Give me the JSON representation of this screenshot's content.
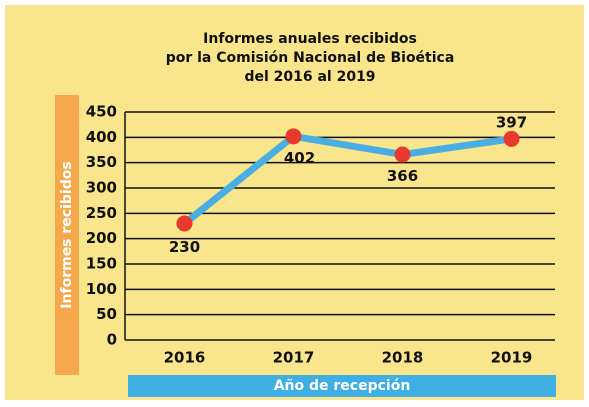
{
  "chart_data": {
    "type": "line",
    "title": "Informes anuales recibidos\npor la Comisión Nacional de Bioética\ndel 2016 al 2019",
    "x_label": "Año de recepción",
    "y_label": "Informes recibidos",
    "categories": [
      "2016",
      "2017",
      "2018",
      "2019"
    ],
    "series": [
      {
        "name": "Informes recibidos",
        "color": "#4aaee3",
        "marker_color": "#e8392f",
        "values": [
          230,
          402,
          366,
          397
        ]
      }
    ],
    "ylim": [
      0,
      450
    ],
    "yticks": [
      0,
      50,
      100,
      150,
      200,
      250,
      300,
      350,
      400,
      450
    ],
    "grid": true
  }
}
